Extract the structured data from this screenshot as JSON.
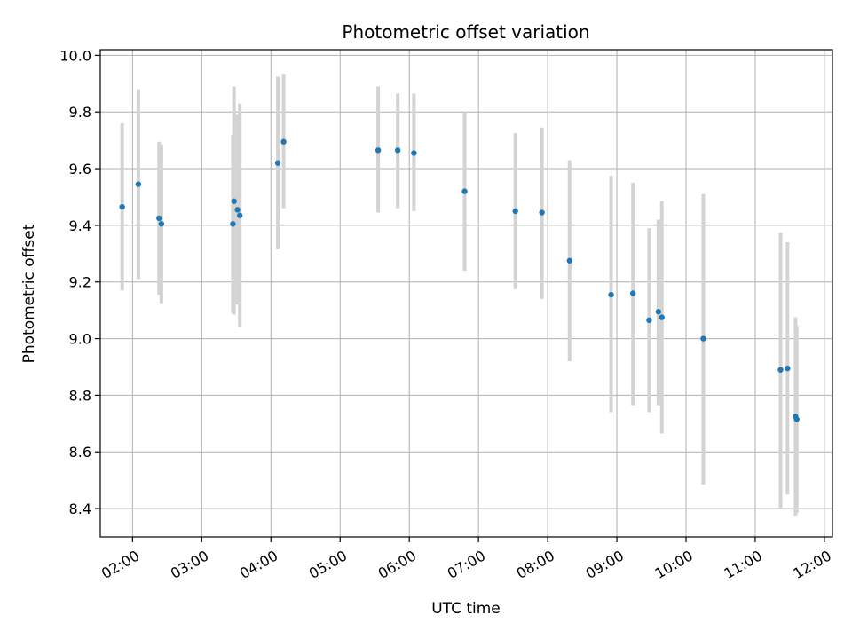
{
  "chart_data": {
    "type": "scatter",
    "title": "Photometric offset variation",
    "xlabel": "UTC time",
    "ylabel": "Photometric offset",
    "xlim": [
      "01:32",
      "12:07"
    ],
    "ylim": [
      8.3,
      10.02
    ],
    "x_ticks": [
      "02:00",
      "03:00",
      "04:00",
      "05:00",
      "06:00",
      "07:00",
      "08:00",
      "09:00",
      "10:00",
      "11:00",
      "12:00"
    ],
    "y_ticks": [
      8.4,
      8.6,
      8.8,
      9.0,
      9.2,
      9.4,
      9.6,
      9.8,
      10.0
    ],
    "grid": true,
    "point_color": "#1f77b4",
    "errorbar_color": "#d3d3d3",
    "points": [
      {
        "time": "01:51",
        "value": 9.465,
        "low": 9.17,
        "high": 9.76
      },
      {
        "time": "02:05",
        "value": 9.545,
        "low": 9.21,
        "high": 9.88
      },
      {
        "time": "02:23",
        "value": 9.425,
        "low": 9.155,
        "high": 9.695
      },
      {
        "time": "02:25",
        "value": 9.405,
        "low": 9.125,
        "high": 9.685
      },
      {
        "time": "03:27",
        "value": 9.405,
        "low": 9.09,
        "high": 9.72
      },
      {
        "time": "03:28",
        "value": 9.485,
        "low": 9.085,
        "high": 9.89
      },
      {
        "time": "03:31",
        "value": 9.455,
        "low": 9.12,
        "high": 9.79
      },
      {
        "time": "03:33",
        "value": 9.435,
        "low": 9.04,
        "high": 9.83
      },
      {
        "time": "04:06",
        "value": 9.62,
        "low": 9.315,
        "high": 9.925
      },
      {
        "time": "04:11",
        "value": 9.695,
        "low": 9.46,
        "high": 9.935
      },
      {
        "time": "05:33",
        "value": 9.665,
        "low": 9.445,
        "high": 9.89
      },
      {
        "time": "05:50",
        "value": 9.665,
        "low": 9.46,
        "high": 9.865
      },
      {
        "time": "06:04",
        "value": 9.655,
        "low": 9.45,
        "high": 9.865
      },
      {
        "time": "06:48",
        "value": 9.52,
        "low": 9.24,
        "high": 9.8
      },
      {
        "time": "07:32",
        "value": 9.45,
        "low": 9.175,
        "high": 9.725
      },
      {
        "time": "07:55",
        "value": 9.445,
        "low": 9.14,
        "high": 9.745
      },
      {
        "time": "08:19",
        "value": 9.275,
        "low": 8.92,
        "high": 9.63
      },
      {
        "time": "08:55",
        "value": 9.155,
        "low": 8.74,
        "high": 9.575
      },
      {
        "time": "09:14",
        "value": 9.16,
        "low": 8.765,
        "high": 9.55
      },
      {
        "time": "09:28",
        "value": 9.065,
        "low": 8.74,
        "high": 9.39
      },
      {
        "time": "09:36",
        "value": 9.095,
        "low": 8.765,
        "high": 9.42
      },
      {
        "time": "09:39",
        "value": 9.075,
        "low": 8.665,
        "high": 9.485
      },
      {
        "time": "10:15",
        "value": 9.0,
        "low": 8.485,
        "high": 9.51
      },
      {
        "time": "11:22",
        "value": 8.89,
        "low": 8.4,
        "high": 9.375
      },
      {
        "time": "11:28",
        "value": 8.895,
        "low": 8.45,
        "high": 9.34
      },
      {
        "time": "11:35",
        "value": 8.725,
        "low": 8.375,
        "high": 9.075
      },
      {
        "time": "11:36",
        "value": 8.715,
        "low": 8.385,
        "high": 9.045
      }
    ]
  }
}
